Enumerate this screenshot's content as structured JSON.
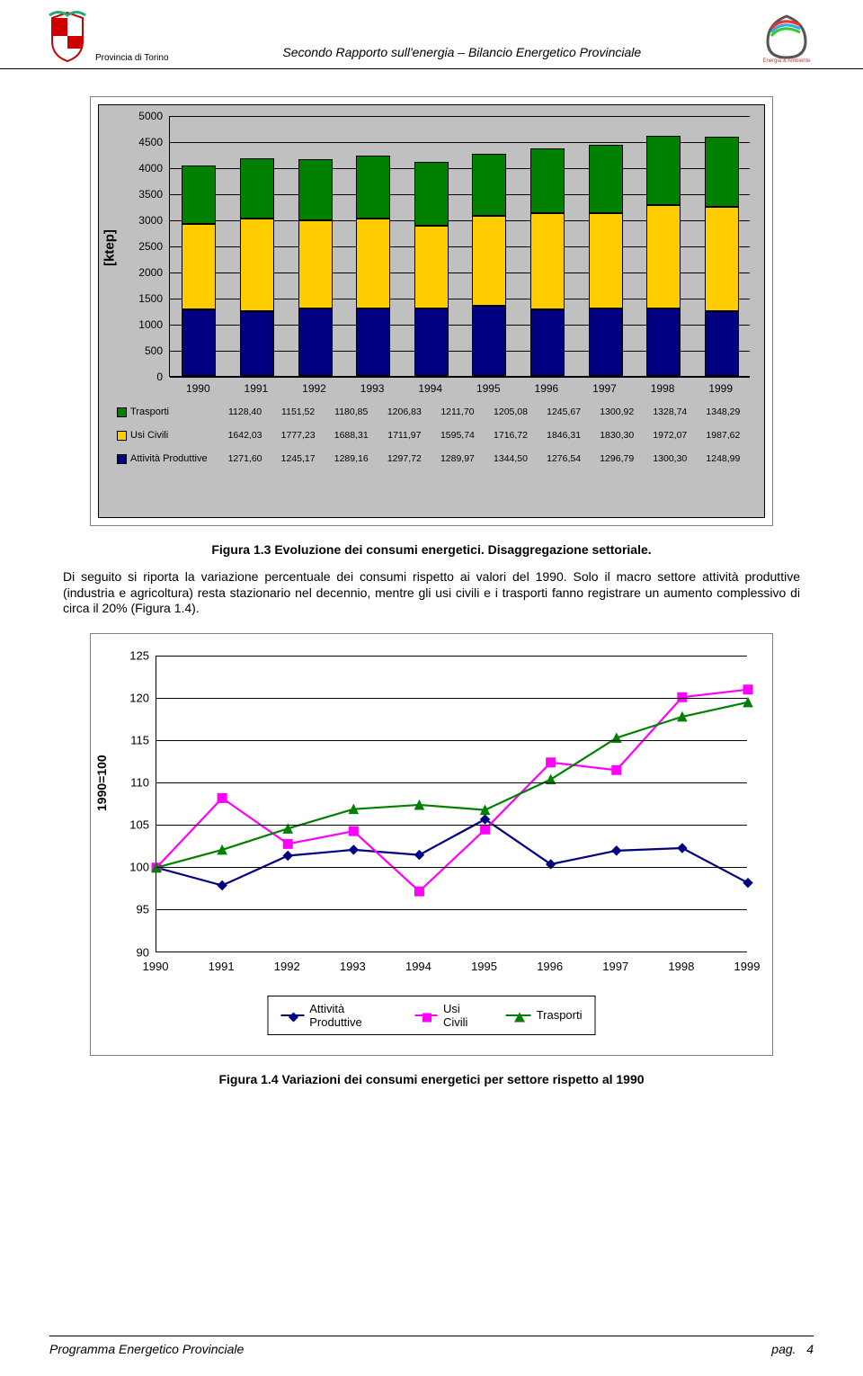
{
  "header": {
    "province": "Provincia di Torino",
    "title": "Secondo Rapporto sull'energia – Bilancio Energetico Provinciale"
  },
  "chart1": {
    "type": "stacked-bar",
    "ylabel": "[ktep]",
    "yaxis": {
      "min": 0,
      "max": 5000,
      "step": 500
    },
    "years": [
      "1990",
      "1991",
      "1992",
      "1993",
      "1994",
      "1995",
      "1996",
      "1997",
      "1998",
      "1999"
    ],
    "series": [
      {
        "name": "Trasporti",
        "color": "#008000",
        "values": [
          1128.4,
          1151.52,
          1180.85,
          1206.83,
          1211.7,
          1205.08,
          1245.67,
          1300.92,
          1328.74,
          1348.29
        ],
        "labels": [
          "1128,40",
          "1151,52",
          "1180,85",
          "1206,83",
          "1211,70",
          "1205,08",
          "1245,67",
          "1300,92",
          "1328,74",
          "1348,29"
        ]
      },
      {
        "name": "Usi Civili",
        "color": "#ffcc00",
        "values": [
          1642.03,
          1777.23,
          1688.31,
          1711.97,
          1595.74,
          1716.72,
          1846.31,
          1830.3,
          1972.07,
          1987.62
        ],
        "labels": [
          "1642,03",
          "1777,23",
          "1688,31",
          "1711,97",
          "1595,74",
          "1716,72",
          "1846,31",
          "1830,30",
          "1972,07",
          "1987,62"
        ]
      },
      {
        "name": "Attività Produttive",
        "color": "#000080",
        "values": [
          1271.6,
          1245.17,
          1289.16,
          1297.72,
          1289.97,
          1344.5,
          1276.54,
          1296.79,
          1300.3,
          1248.99
        ],
        "labels": [
          "1271,60",
          "1245,17",
          "1289,16",
          "1297,72",
          "1289,97",
          "1344,50",
          "1276,54",
          "1296,79",
          "1300,30",
          "1248,99"
        ]
      }
    ],
    "background": "#c0c0c0",
    "bar_border": "#000000"
  },
  "caption1": "Figura 1.3 Evoluzione dei consumi energetici. Disaggregazione settoriale.",
  "paragraph": "Di seguito si riporta la variazione percentuale dei consumi rispetto ai valori del 1990. Solo il macro settore attività produttive (industria e agricoltura) resta stazionario nel decennio, mentre gli usi civili e i trasporti fanno registrare un aumento complessivo di circa il 20% (Figura 1.4).",
  "chart2": {
    "type": "line",
    "ylabel": "1990=100",
    "yaxis": {
      "min": 90,
      "max": 125,
      "step": 5
    },
    "years": [
      "1990",
      "1991",
      "1992",
      "1993",
      "1994",
      "1995",
      "1996",
      "1997",
      "1998",
      "1999"
    ],
    "series": [
      {
        "name": "Attività Produttive",
        "color": "#000080",
        "marker": "diamond",
        "values": [
          100,
          97.9,
          101.4,
          102.1,
          101.5,
          105.7,
          100.4,
          102.0,
          102.3,
          98.2
        ]
      },
      {
        "name": "Usi Civili",
        "color": "#ff00ff",
        "marker": "square",
        "values": [
          100,
          108.2,
          102.8,
          104.3,
          97.2,
          104.5,
          112.4,
          111.5,
          120.1,
          121.0
        ]
      },
      {
        "name": "Trasporti",
        "color": "#008000",
        "marker": "triangle",
        "values": [
          100,
          102.1,
          104.6,
          106.9,
          107.4,
          106.8,
          110.4,
          115.3,
          117.8,
          119.5
        ]
      }
    ],
    "grid_color": "#000000",
    "background": "#ffffff",
    "line_width": 2.2,
    "marker_size": 10
  },
  "caption2": "Figura 1.4 Variazioni dei consumi energetici per settore rispetto al 1990",
  "footer": {
    "left": "Programma Energetico Provinciale",
    "right_label": "pag.",
    "right_num": "4"
  }
}
